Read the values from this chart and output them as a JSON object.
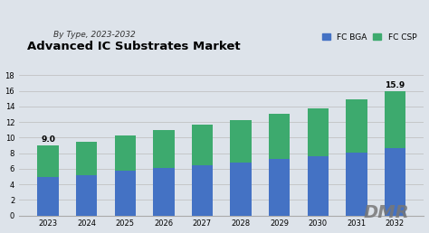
{
  "title": "Advanced IC Substrates Market",
  "subtitle": "By Type, 2023-2032",
  "years": [
    2023,
    2024,
    2025,
    2026,
    2027,
    2028,
    2029,
    2030,
    2031,
    2032
  ],
  "fc_bga": [
    4.9,
    5.2,
    5.7,
    6.1,
    6.5,
    6.8,
    7.2,
    7.6,
    8.1,
    8.7
  ],
  "fc_csp": [
    4.1,
    4.3,
    4.6,
    4.9,
    5.2,
    5.4,
    5.8,
    6.2,
    6.8,
    7.2
  ],
  "fc_bga_color": "#4472c4",
  "fc_csp_color": "#3daa6e",
  "background_color": "#dde3ea",
  "plot_bg_color": "#dde3ea",
  "ylim": [
    0,
    19
  ],
  "yticks": [
    0,
    2,
    4,
    6,
    8,
    10,
    12,
    14,
    16,
    18
  ],
  "legend_fc_bga": "FC BGA",
  "legend_fc_csp": "FC CSP",
  "bar_width": 0.55,
  "label_first": "9.0",
  "label_last": "15.9"
}
